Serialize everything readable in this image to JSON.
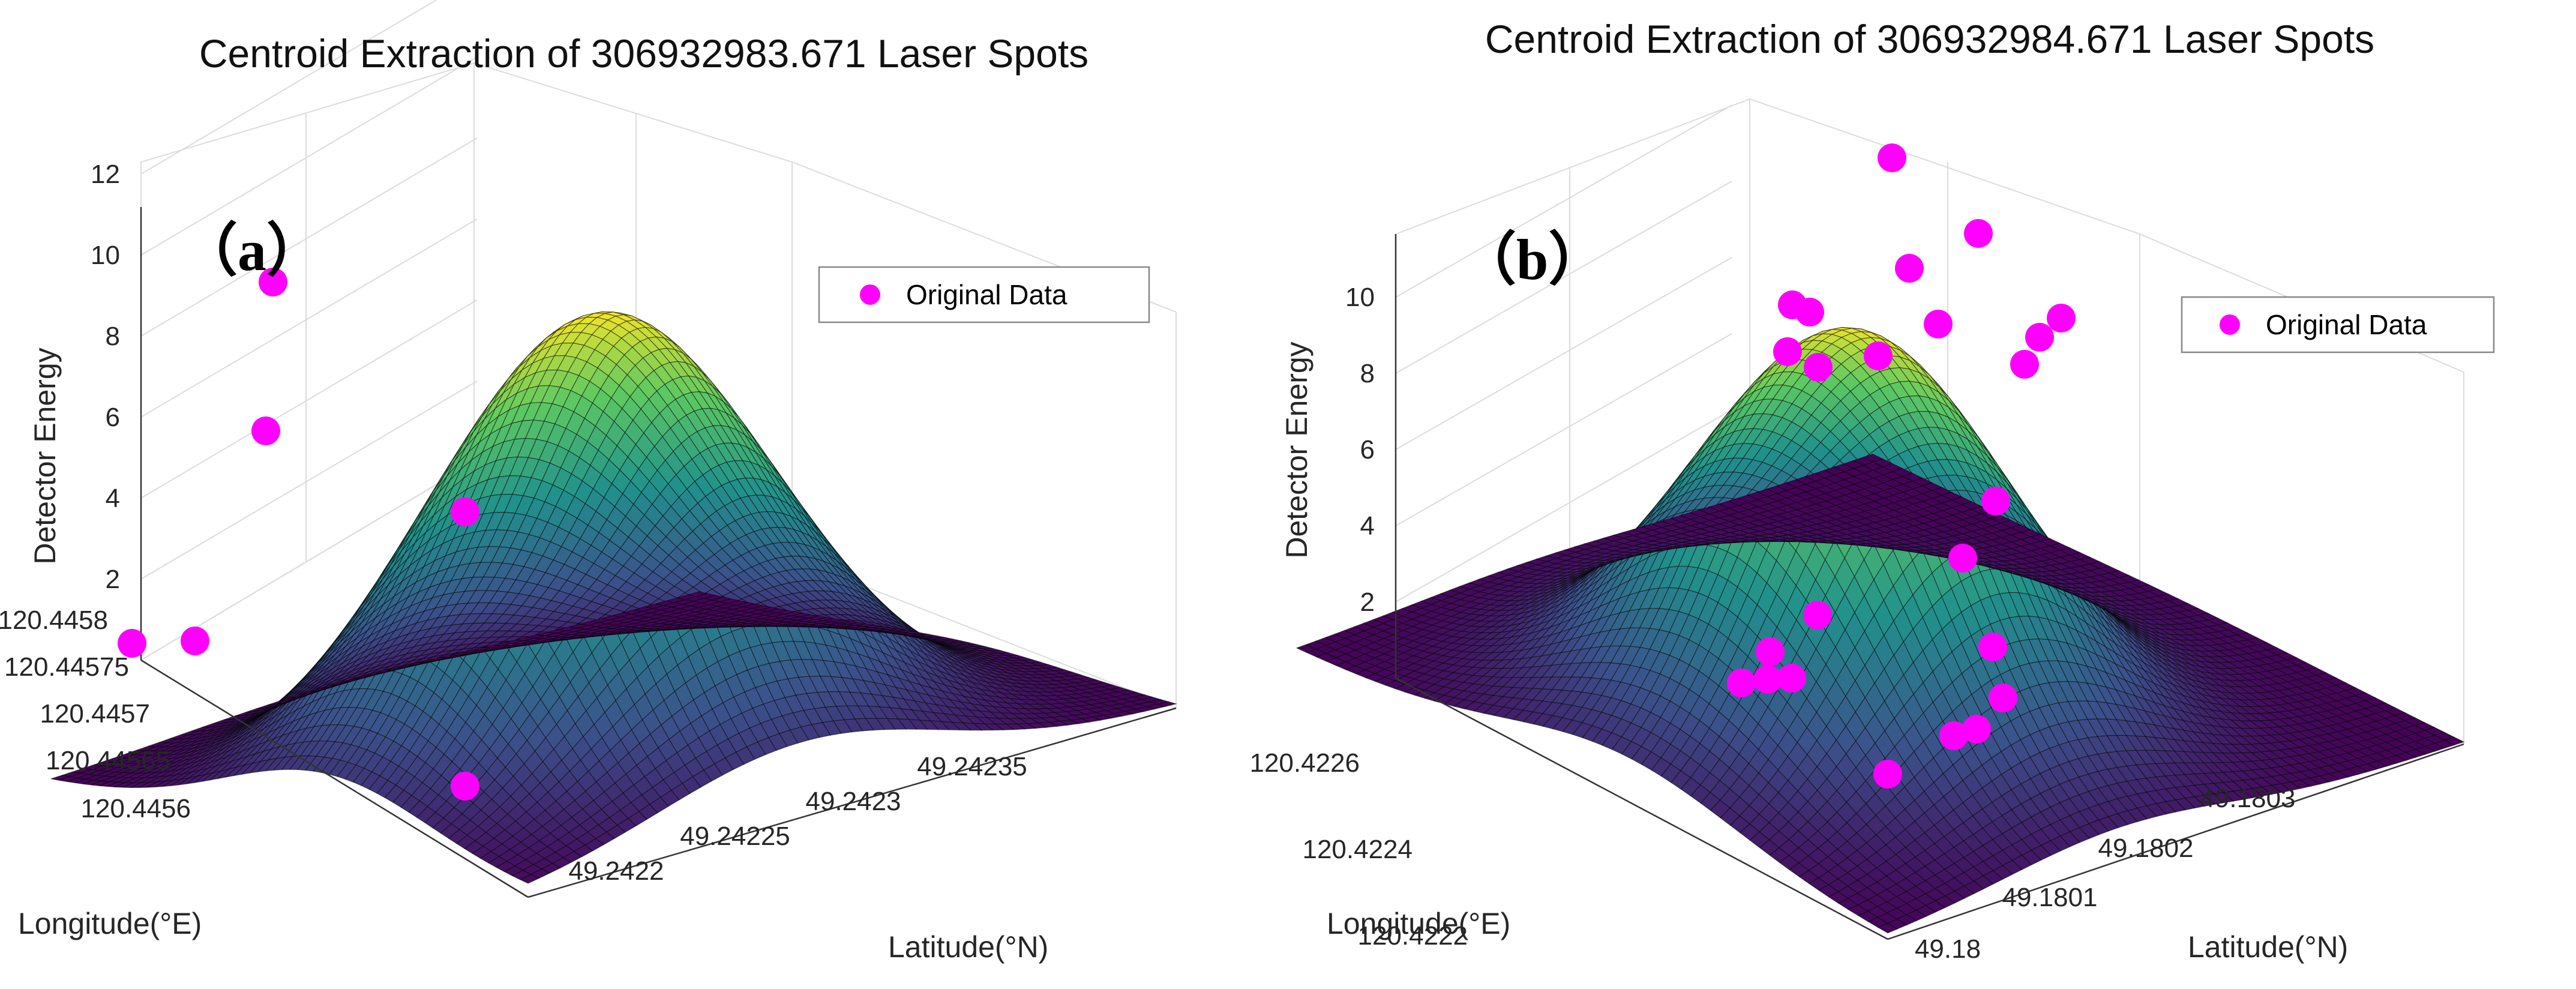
{
  "chart_data": [
    {
      "type": "surface",
      "panel_label": "（a）",
      "title": "Centroid Extraction of 306932983.671 Laser Spots",
      "zlabel": "Detector Energy",
      "xlabel": "Longitude(°E)",
      "ylabel": "Latitude(°N)",
      "zticks": [
        "2",
        "4",
        "6",
        "8",
        "10",
        "12"
      ],
      "zlim": [
        0,
        12
      ],
      "longitude_ticks": [
        "120.4458",
        "120.44575",
        "120.4457",
        "120.44565",
        "120.4456"
      ],
      "latitude_ticks": [
        "49.2422",
        "49.24225",
        "49.2423",
        "49.24235"
      ],
      "legend": "Original Data",
      "peak_energy": 11.2,
      "series": [
        {
          "name": "Original Data",
          "points": [
            {
              "lon": 120.44573,
              "lat": 49.24226,
              "energy": 10.3
            },
            {
              "lon": 120.44571,
              "lat": 49.24228,
              "energy": 7.0
            },
            {
              "lon": 120.44563,
              "lat": 49.24235,
              "energy": 3.8
            },
            {
              "lon": 120.44562,
              "lat": 49.24226,
              "energy": 1.2
            },
            {
              "lon": 120.44579,
              "lat": 49.24221,
              "energy": 1.0
            },
            {
              "lon": 120.44561,
              "lat": 49.24223,
              "energy": 0.5
            }
          ]
        }
      ]
    },
    {
      "type": "surface",
      "panel_label": "（b）",
      "title": "Centroid Extraction of 306932984.671 Laser Spots",
      "zlabel": "Detector Energy",
      "xlabel": "Longitude(°E)",
      "ylabel": "Latitude(°N)",
      "zticks": [
        "2",
        "4",
        "6",
        "8",
        "10"
      ],
      "zlim": [
        0,
        11.5
      ],
      "longitude_ticks": [
        "120.4226",
        "120.4224",
        "120.4222"
      ],
      "latitude_ticks": [
        "49.18",
        "49.1801",
        "49.1802",
        "49.1803"
      ],
      "legend": "Original Data",
      "peak_energy": 10.4,
      "series": [
        {
          "name": "Original Data",
          "points": [
            {
              "lon": 120.4225,
              "lat": 49.18025,
              "energy": 11.8
            },
            {
              "lon": 120.4226,
              "lat": 49.1801,
              "energy": 10.9
            },
            {
              "lon": 120.4224,
              "lat": 49.1803,
              "energy": 10.6
            },
            {
              "lon": 120.4228,
              "lat": 49.18005,
              "energy": 9.8
            },
            {
              "lon": 120.4227,
              "lat": 49.18008,
              "energy": 9.6
            },
            {
              "lon": 120.4223,
              "lat": 49.18035,
              "energy": 9.5
            },
            {
              "lon": 120.4224,
              "lat": 49.18028,
              "energy": 9.0
            },
            {
              "lon": 120.4222,
              "lat": 49.18038,
              "energy": 8.8
            },
            {
              "lon": 120.4228,
              "lat": 49.18,
              "energy": 8.5
            },
            {
              "lon": 120.4225,
              "lat": 49.18018,
              "energy": 8.4
            },
            {
              "lon": 120.4227,
              "lat": 49.18004,
              "energy": 8.1
            },
            {
              "lon": 120.4222,
              "lat": 49.18032,
              "energy": 8.0
            },
            {
              "lon": 120.4221,
              "lat": 49.18045,
              "energy": 4.8
            },
            {
              "lon": 120.4222,
              "lat": 49.1804,
              "energy": 3.4
            },
            {
              "lon": 120.4229,
              "lat": 49.17998,
              "energy": 2.1
            },
            {
              "lon": 120.4226,
              "lat": 49.18006,
              "energy": 1.8
            },
            {
              "lon": 120.423,
              "lat": 49.17996,
              "energy": 1.2
            },
            {
              "lon": 120.4229,
              "lat": 49.17994,
              "energy": 0.8
            },
            {
              "lon": 120.4228,
              "lat": 49.17992,
              "energy": 0.6
            },
            {
              "lon": 120.422,
              "lat": 49.1805,
              "energy": 0.9
            },
            {
              "lon": 120.4221,
              "lat": 49.18046,
              "energy": 0.6
            },
            {
              "lon": 120.4222,
              "lat": 49.18044,
              "energy": 0.4
            },
            {
              "lon": 120.4221,
              "lat": 49.1804,
              "energy": 0.3
            },
            {
              "lon": 120.4222,
              "lat": 49.18035,
              "energy": 0.2
            }
          ]
        }
      ]
    }
  ],
  "colors": {
    "marker": "#ff00ff",
    "colormap": [
      "#440154",
      "#3b528b",
      "#21918c",
      "#5ec962",
      "#fde725"
    ],
    "mesh": "#000000"
  }
}
